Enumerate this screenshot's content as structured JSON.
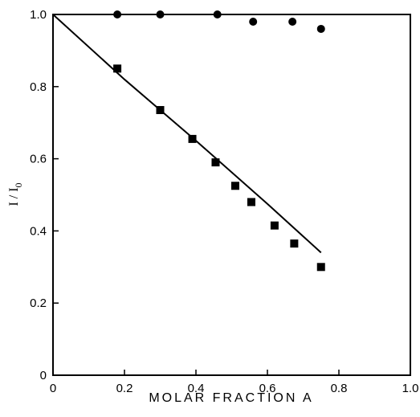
{
  "chart_data": {
    "type": "scatter",
    "xlabel": "MOLAR FRACTION A",
    "ylabel_main": "I / I",
    "ylabel_sub": "0",
    "xlim": [
      0,
      1.0
    ],
    "ylim": [
      0,
      1.0
    ],
    "x_ticks": [
      0,
      0.2,
      0.4,
      0.6,
      0.8,
      1.0
    ],
    "x_tick_labels": [
      "0",
      "0.2",
      "0.4",
      "0.6",
      "0.8",
      "1.0"
    ],
    "y_ticks": [
      0,
      0.2,
      0.4,
      0.6,
      0.8,
      1.0
    ],
    "y_tick_labels": [
      "0",
      "0.2",
      "0.4",
      "0.6",
      "0.8",
      "1.0"
    ],
    "grid": false,
    "series": [
      {
        "marker": "circle",
        "line": "connected",
        "points": [
          {
            "x": 0.18,
            "y": 1.0
          },
          {
            "x": 0.3,
            "y": 1.0
          },
          {
            "x": 0.46,
            "y": 1.0
          },
          {
            "x": 0.56,
            "y": 0.98
          },
          {
            "x": 0.67,
            "y": 0.98
          },
          {
            "x": 0.75,
            "y": 0.96
          }
        ]
      },
      {
        "marker": "square",
        "points": [
          {
            "x": 0.18,
            "y": 0.85
          },
          {
            "x": 0.3,
            "y": 0.735
          },
          {
            "x": 0.39,
            "y": 0.655
          },
          {
            "x": 0.455,
            "y": 0.59
          },
          {
            "x": 0.51,
            "y": 0.525
          },
          {
            "x": 0.555,
            "y": 0.48
          },
          {
            "x": 0.62,
            "y": 0.415
          },
          {
            "x": 0.675,
            "y": 0.365
          },
          {
            "x": 0.75,
            "y": 0.3
          }
        ]
      }
    ],
    "fit_curve": {
      "points": [
        {
          "x": 0.0,
          "y": 1.0
        },
        {
          "x": 0.2,
          "y": 0.82
        },
        {
          "x": 0.4,
          "y": 0.65
        },
        {
          "x": 0.6,
          "y": 0.475
        },
        {
          "x": 0.75,
          "y": 0.34
        }
      ]
    }
  }
}
